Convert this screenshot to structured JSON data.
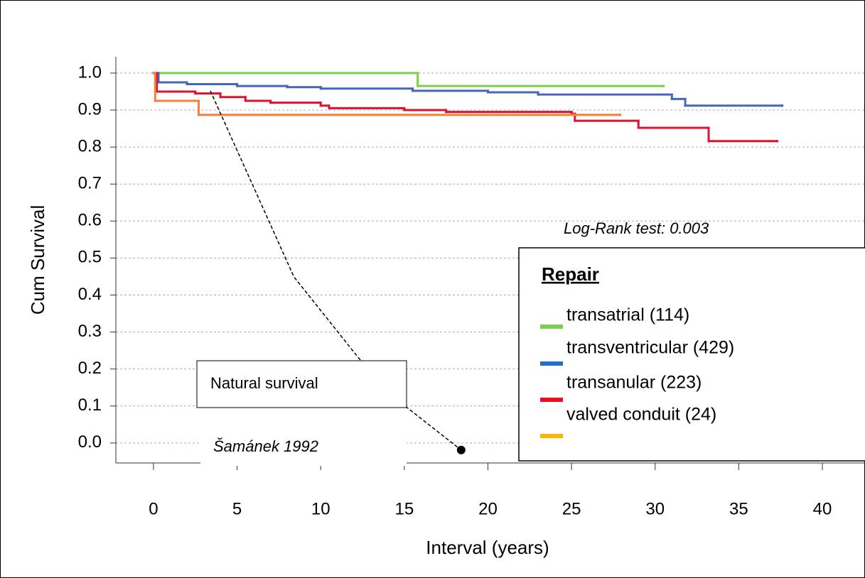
{
  "chart_data": {
    "type": "line",
    "step": true,
    "xlabel": "Interval (years)",
    "ylabel": "Cum Survival",
    "annotation": "Log-Rank test: 0.003",
    "legend_title": "Repair",
    "legend": "right",
    "grid": true,
    "xlim": [
      -2.25,
      42.55
    ],
    "ylim": [
      -0.054,
      1.044
    ],
    "xticks": [
      0,
      5,
      10,
      15,
      20,
      25,
      30,
      35,
      40
    ],
    "yticks": [
      {
        "value": 1.0,
        "label": "1.0"
      },
      {
        "value": 0.9,
        "label": "0.9"
      },
      {
        "value": 0.8,
        "label": "0.8"
      },
      {
        "value": 0.7,
        "label": "0.7"
      },
      {
        "value": 0.6,
        "label": "0.6"
      },
      {
        "value": 0.5,
        "label": "0.5"
      },
      {
        "value": 0.4,
        "label": "0.4"
      },
      {
        "value": 0.3,
        "label": "0.3"
      },
      {
        "value": 0.2,
        "label": "0.2"
      },
      {
        "value": 0.1,
        "label": "0.1"
      },
      {
        "value": 0.0,
        "label": "0.0"
      }
    ],
    "series": [
      {
        "name": "transatrial (114)",
        "color": "#7dcf4a",
        "x": [
          0,
          15.8,
          30.5
        ],
        "values": [
          1.0,
          0.965,
          0.965
        ]
      },
      {
        "name": "transventricular (429)",
        "color": "#4466bb",
        "x": [
          0,
          0.3,
          2,
          5,
          8,
          10,
          15.5,
          20,
          23,
          31,
          31.8,
          37.6
        ],
        "values": [
          1.0,
          0.975,
          0.97,
          0.965,
          0.962,
          0.958,
          0.952,
          0.948,
          0.942,
          0.93,
          0.912,
          0.912
        ]
      },
      {
        "name": "transanular (223)",
        "color": "#e0102e",
        "x": [
          0,
          0.2,
          2.5,
          4,
          5.5,
          7,
          10,
          10.5,
          15,
          17.5,
          25,
          25.2,
          29,
          33.2,
          37.3
        ],
        "values": [
          1.0,
          0.95,
          0.945,
          0.935,
          0.925,
          0.92,
          0.912,
          0.905,
          0.9,
          0.895,
          0.89,
          0.871,
          0.852,
          0.816,
          0.816
        ]
      },
      {
        "name": "valved conduit (24)",
        "color": "#f5803a",
        "x": [
          0,
          0.1,
          2.7,
          27.9
        ],
        "values": [
          1.0,
          0.925,
          0.887,
          0.887
        ]
      }
    ],
    "legend_colors": [
      "#7dcf4a",
      "#1f6fcc",
      "#e8101e",
      "#ffb400"
    ],
    "reference": {
      "name": "Natural survival",
      "source": "Šamánek 1992",
      "color": "#000000",
      "style": "dashed",
      "x": [
        3.4,
        8.4,
        12.3,
        15.1,
        18.4
      ],
      "values": [
        0.952,
        0.449,
        0.228,
        0.098,
        -0.019
      ]
    }
  }
}
